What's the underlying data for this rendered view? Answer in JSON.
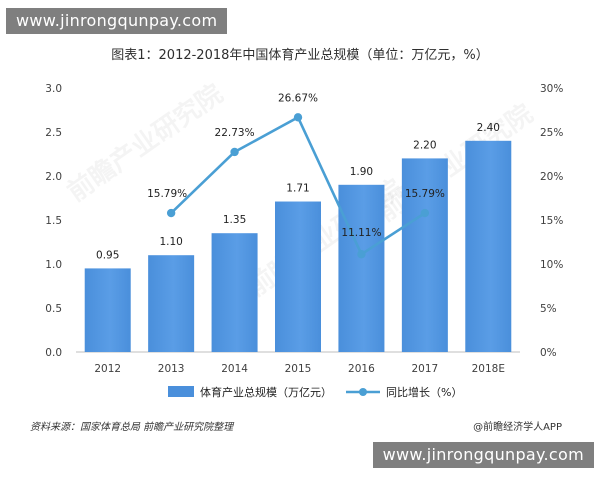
{
  "watermark_top": "www.jinrongqunpay.com",
  "watermark_bottom": "www.jinrongqunpay.com",
  "background_watermark": "前瞻产业研究院",
  "footer": {
    "source": "资料来源：国家体育总局 前瞻产业研究院整理",
    "credit": "@前瞻经济学人APP"
  },
  "colors": {
    "bar": "#4a8fdb",
    "bar_top": "#5a9de6",
    "line": "#4a9fd4",
    "axis_text": "#404040",
    "grid": "#e6e6e6"
  },
  "chart_data": {
    "type": "bar",
    "title": "图表1：2012-2018年中国体育产业总规模（单位：万亿元，%）",
    "categories": [
      "2012",
      "2013",
      "2014",
      "2015",
      "2016",
      "2017",
      "2018E"
    ],
    "series": [
      {
        "name": "体育产业总规模（万亿元）",
        "type": "bar",
        "axis": "left",
        "values": [
          0.95,
          1.1,
          1.35,
          1.71,
          1.9,
          2.2,
          2.4
        ],
        "labels": [
          "0.95",
          "1.10",
          "1.35",
          "1.71",
          "1.90",
          "2.20",
          "2.40"
        ]
      },
      {
        "name": "同比增长（%）",
        "type": "line",
        "axis": "right",
        "values": [
          null,
          15.79,
          22.73,
          26.67,
          11.11,
          15.79,
          null
        ],
        "labels": [
          "",
          "15.79%",
          "22.73%",
          "26.67%",
          "11.11%",
          "15.79%",
          ""
        ]
      }
    ],
    "ylim_left": [
      0,
      3.0
    ],
    "yticks_left": [
      "0.0",
      "0.5",
      "1.0",
      "1.5",
      "2.0",
      "2.5",
      "3.0"
    ],
    "ylim_right": [
      0,
      30
    ],
    "yticks_right": [
      "0%",
      "5%",
      "10%",
      "15%",
      "20%",
      "25%",
      "30%"
    ],
    "grid": false,
    "legend_position": "bottom"
  }
}
